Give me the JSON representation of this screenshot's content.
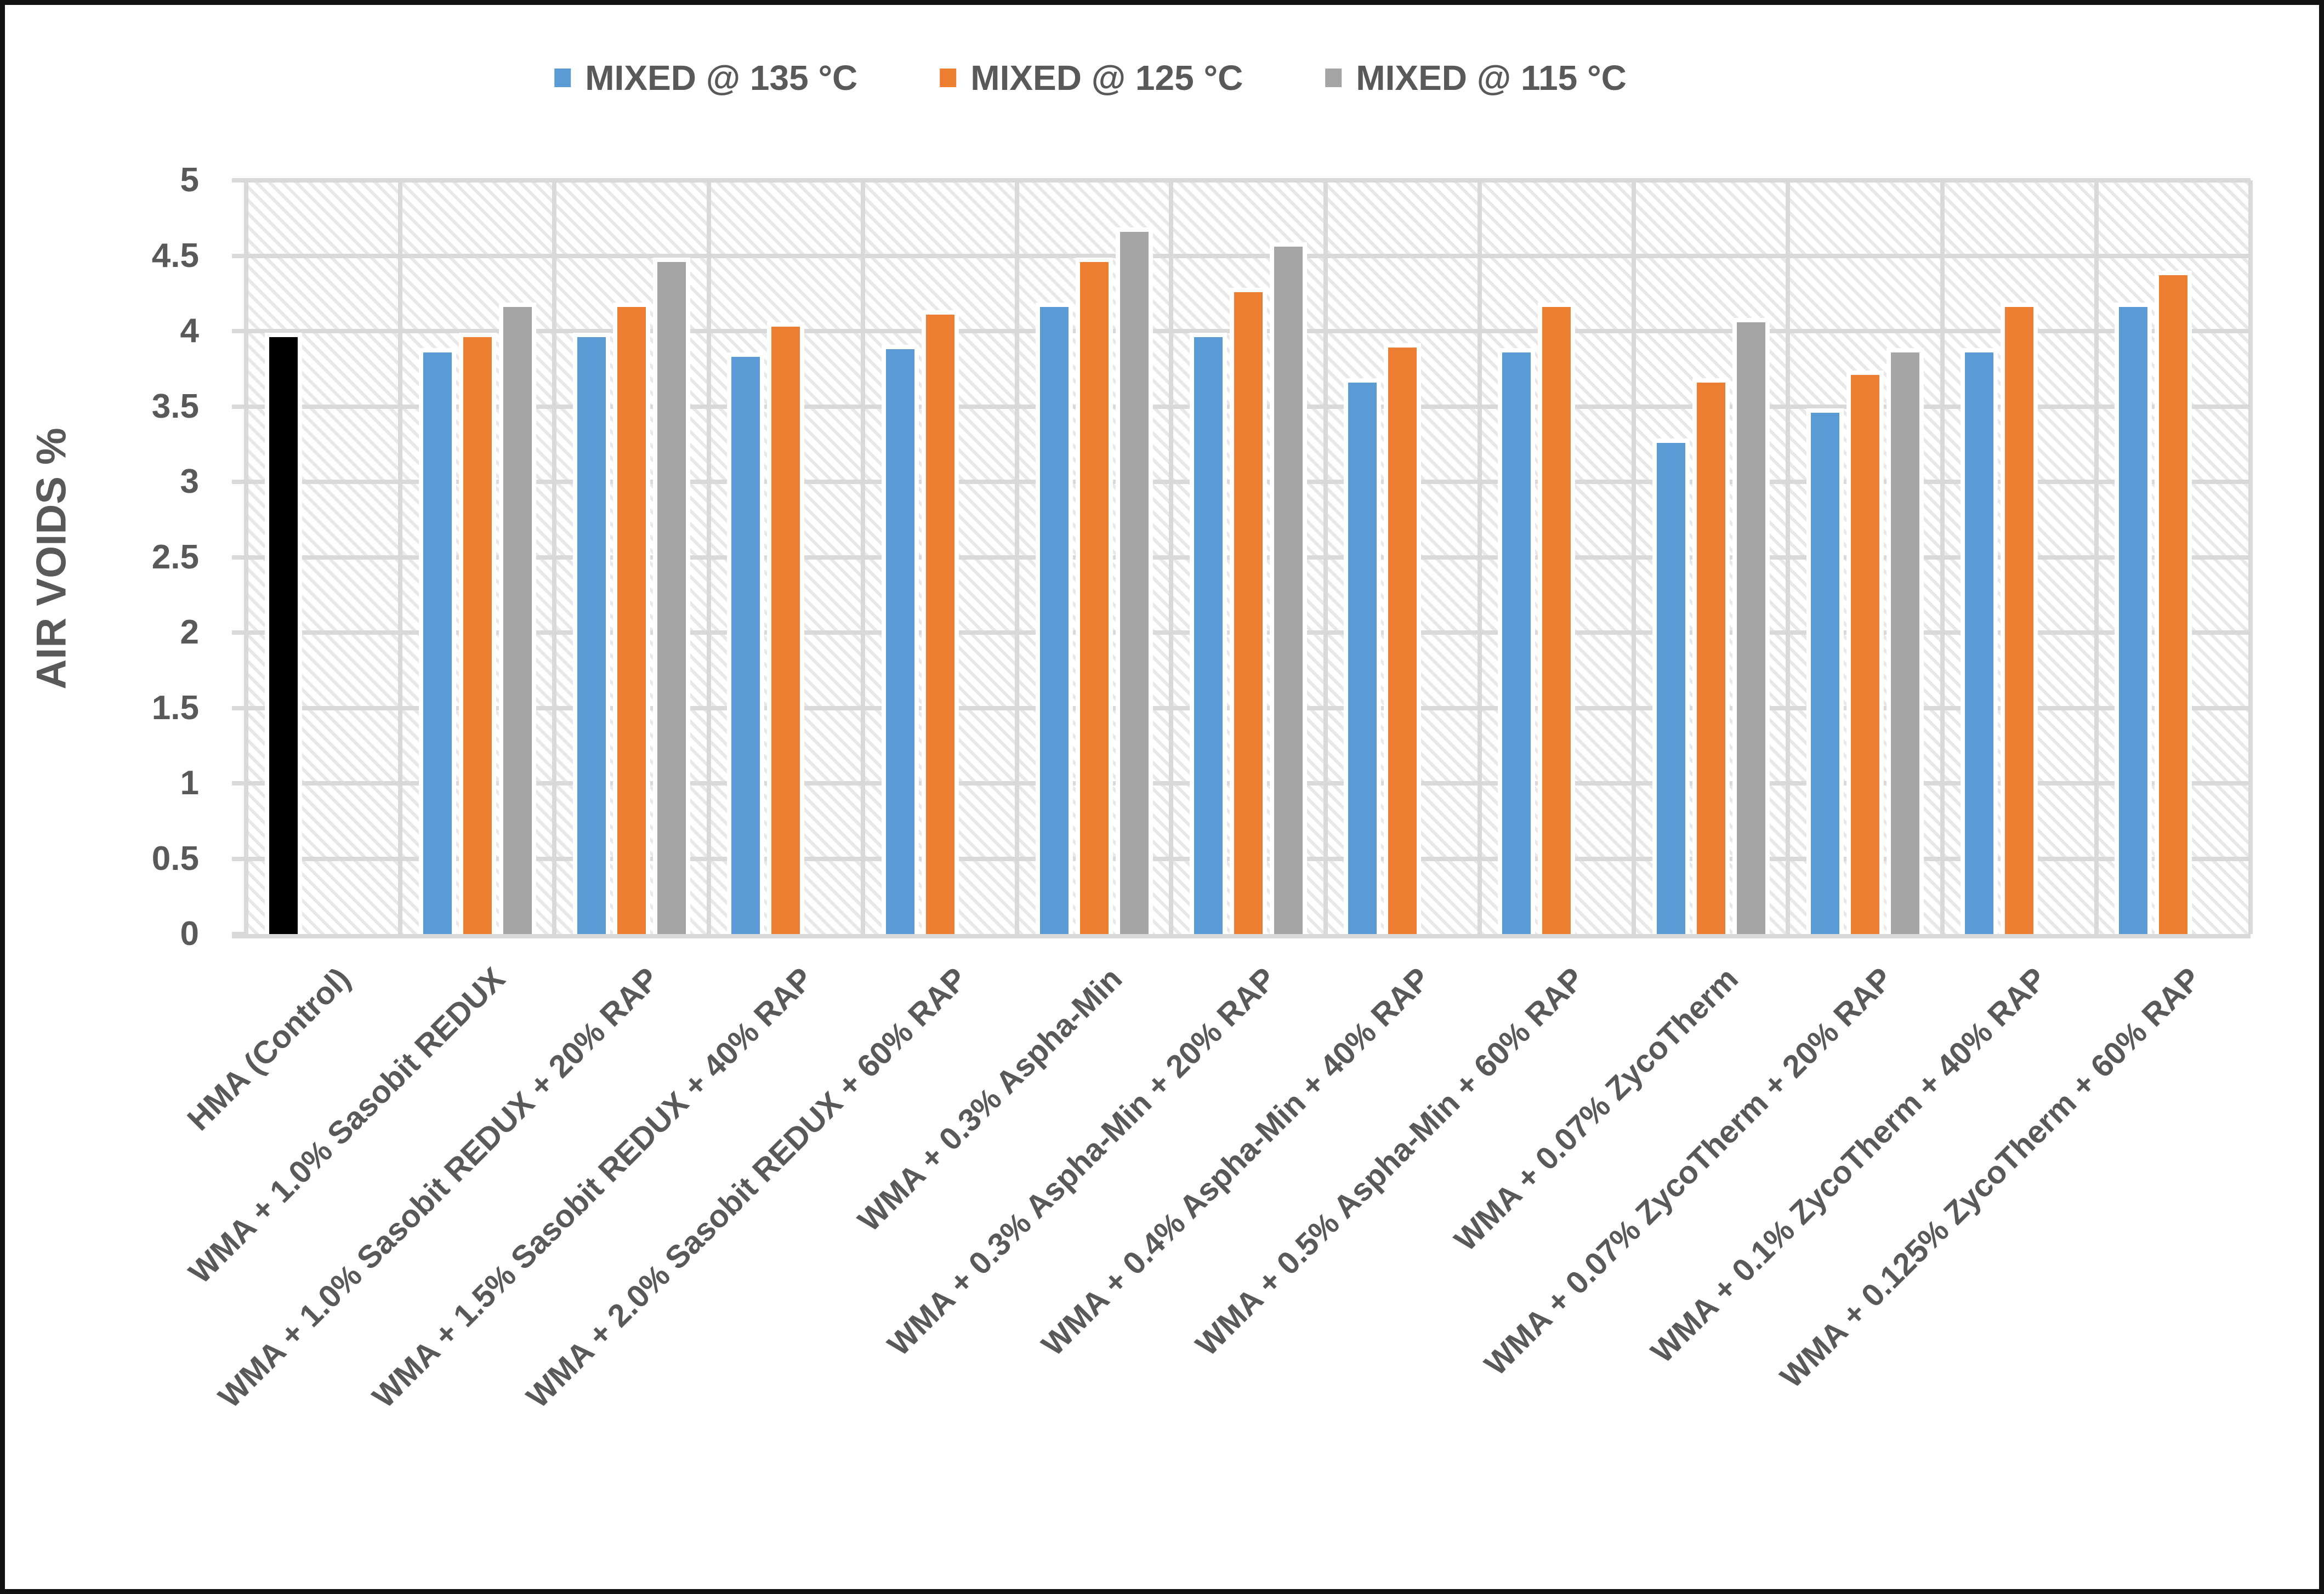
{
  "chart_data": {
    "type": "bar",
    "title": "",
    "ylabel": "AIR VOIDS %",
    "xlabel": "",
    "ylim": [
      0,
      5
    ],
    "ytick_step": 0.5,
    "yticks": [
      "0",
      "0.5",
      "1",
      "1.5",
      "2",
      "2.5",
      "3",
      "3.5",
      "4",
      "4.5",
      "5"
    ],
    "grid": true,
    "legend_position": "top-center",
    "plot_background": "light-diagonal-hatch",
    "categories": [
      "HMA (Control)",
      "WMA + 1.0% Sasobit REDUX",
      "WMA + 1.0% Sasobit REDUX + 20% RAP",
      "WMA + 1.5% Sasobit REDUX + 40% RAP",
      "WMA + 2.0% Sasobit REDUX + 60% RAP",
      "WMA + 0.3% Aspha-Min",
      "WMA + 0.3% Aspha-Min + 20% RAP",
      "WMA + 0.4% Aspha-Min + 40% RAP",
      "WMA + 0.5% Aspha-Min + 60% RAP",
      "WMA + 0.07% ZycoTherm",
      "WMA + 0.07% ZycoTherm + 20% RAP",
      "WMA + 0.1% ZycoTherm + 40% RAP",
      "WMA + 0.125% ZycoTherm + 60% RAP"
    ],
    "series": [
      {
        "name": "MIXED @ 135 °C",
        "color": "#5B9BD5",
        "values": [
          3.96,
          3.86,
          3.96,
          3.83,
          3.88,
          4.16,
          3.96,
          3.66,
          3.86,
          3.26,
          3.46,
          3.86,
          4.16
        ],
        "point_colors": {
          "0": "#000000"
        }
      },
      {
        "name": "MIXED @ 125 °C",
        "color": "#ED7D31",
        "values": [
          null,
          3.96,
          4.16,
          4.03,
          4.11,
          4.46,
          4.26,
          3.89,
          4.16,
          3.66,
          3.71,
          4.16,
          4.37
        ]
      },
      {
        "name": "MIXED @ 115 °C",
        "color": "#A5A5A5",
        "values": [
          null,
          4.16,
          4.46,
          null,
          null,
          4.66,
          4.56,
          null,
          null,
          4.06,
          3.86,
          null,
          null
        ]
      }
    ],
    "colors": {
      "control_bar": "#000000",
      "gridline": "#D9D9D9",
      "hatch": "#E8E8E8",
      "text": "#595959",
      "bar_outline": "#FFFFFF",
      "frame": "#111111"
    }
  }
}
